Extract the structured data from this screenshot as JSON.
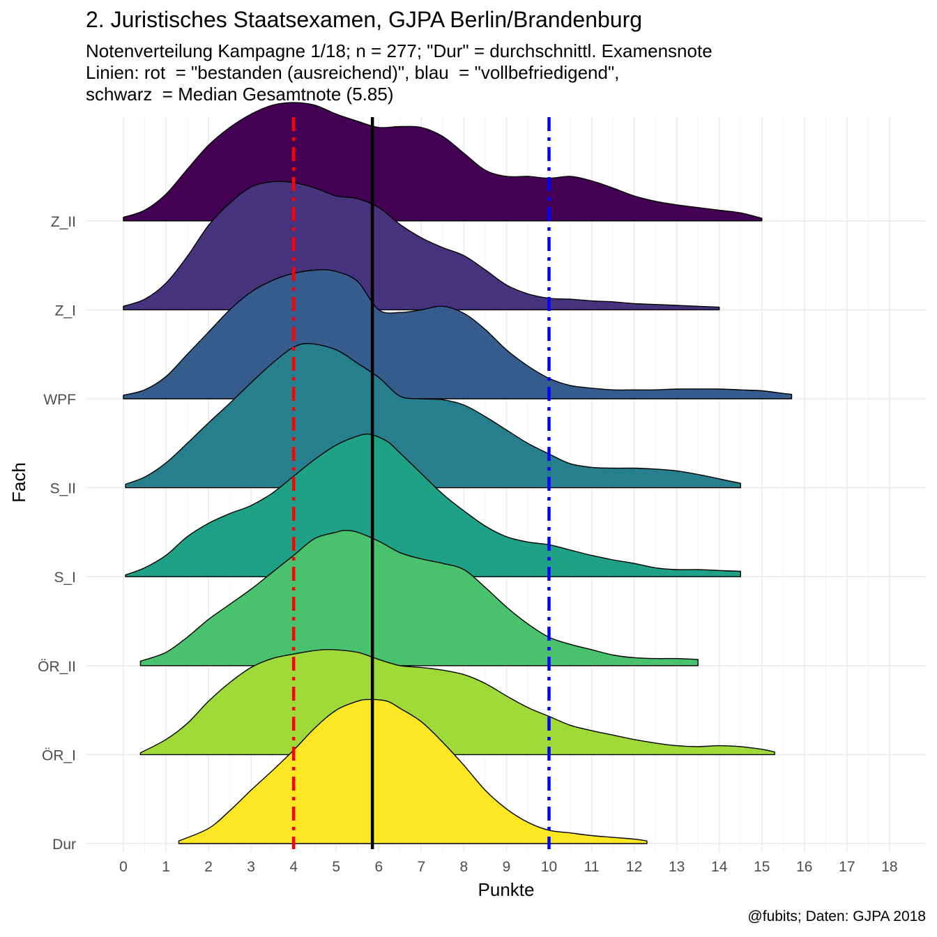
{
  "chart_data": {
    "type": "area",
    "subtype": "ridgeline-density",
    "title": "2. Juristisches Staatsexamen, GJPA Berlin/Brandenburg",
    "subtitle_lines": [
      "Notenverteilung Kampagne 1/18; n = 277; \"Dur\" = durchschnittl. Examensnote",
      "Linien: rot  = \"bestanden (ausreichend)\", blau  = \"vollbefriedigend\",",
      "schwarz  = Median Gesamtnote (5.85)"
    ],
    "caption": "@fubits; Daten: GJPA 2018",
    "xlabel": "Punkte",
    "ylabel": "Fach",
    "xlim": [
      -0.5,
      18.5
    ],
    "x_ticks": [
      "0",
      "1",
      "2",
      "3",
      "4",
      "5",
      "6",
      "7",
      "8",
      "9",
      "10",
      "11",
      "12",
      "13",
      "14",
      "15",
      "16",
      "17",
      "18"
    ],
    "categories": [
      "Dur",
      "ÖR_I",
      "ÖR_II",
      "S_I",
      "S_II",
      "WPF",
      "Z_I",
      "Z_II"
    ],
    "reference_lines": [
      {
        "x": 4,
        "color": "#ff0000",
        "style": "dashdot",
        "meaning": "bestanden (ausreichend)"
      },
      {
        "x": 10,
        "color": "#0000ff",
        "style": "dashdot",
        "meaning": "vollbefriedigend"
      },
      {
        "x": 5.85,
        "color": "#000000",
        "style": "solid",
        "meaning": "Median Gesamtnote"
      }
    ],
    "density_height_unit": "row spacing (1.0 = distance between adjacent categories)",
    "series": [
      {
        "name": "Dur",
        "color": "#fde725",
        "points": [
          [
            1.3,
            0.03
          ],
          [
            2,
            0.17
          ],
          [
            2.5,
            0.37
          ],
          [
            3,
            0.6
          ],
          [
            3.5,
            0.82
          ],
          [
            4,
            1.05
          ],
          [
            4.5,
            1.3
          ],
          [
            5,
            1.5
          ],
          [
            5.5,
            1.6
          ],
          [
            5.8,
            1.62
          ],
          [
            6.2,
            1.6
          ],
          [
            6.5,
            1.52
          ],
          [
            7,
            1.37
          ],
          [
            7.5,
            1.14
          ],
          [
            8,
            0.88
          ],
          [
            8.5,
            0.6
          ],
          [
            9,
            0.39
          ],
          [
            9.5,
            0.24
          ],
          [
            10,
            0.15
          ],
          [
            10.5,
            0.12
          ],
          [
            11,
            0.09
          ],
          [
            11.5,
            0.07
          ],
          [
            12,
            0.05
          ],
          [
            12.3,
            0.03
          ]
        ]
      },
      {
        "name": "ÖR_I",
        "color": "#a0da39",
        "points": [
          [
            0.4,
            0.02
          ],
          [
            1,
            0.17
          ],
          [
            1.5,
            0.35
          ],
          [
            2,
            0.6
          ],
          [
            2.5,
            0.81
          ],
          [
            3,
            0.98
          ],
          [
            3.5,
            1.08
          ],
          [
            4,
            1.13
          ],
          [
            4.5,
            1.17
          ],
          [
            4.9,
            1.18
          ],
          [
            5.5,
            1.15
          ],
          [
            6,
            1.07
          ],
          [
            6.5,
            1.0
          ],
          [
            7,
            0.98
          ],
          [
            7.5,
            0.95
          ],
          [
            8,
            0.9
          ],
          [
            8.5,
            0.8
          ],
          [
            9,
            0.66
          ],
          [
            9.5,
            0.53
          ],
          [
            10,
            0.43
          ],
          [
            10.5,
            0.33
          ],
          [
            11,
            0.27
          ],
          [
            11.5,
            0.22
          ],
          [
            12,
            0.17
          ],
          [
            12.5,
            0.13
          ],
          [
            13,
            0.1
          ],
          [
            13.5,
            0.09
          ],
          [
            14,
            0.1
          ],
          [
            14.5,
            0.09
          ],
          [
            15,
            0.06
          ],
          [
            15.3,
            0.03
          ]
        ]
      },
      {
        "name": "ÖR_II",
        "color": "#4ac16d",
        "points": [
          [
            0.4,
            0.05
          ],
          [
            1,
            0.15
          ],
          [
            1.5,
            0.32
          ],
          [
            2,
            0.52
          ],
          [
            2.5,
            0.69
          ],
          [
            3,
            0.86
          ],
          [
            3.5,
            1.05
          ],
          [
            4,
            1.24
          ],
          [
            4.5,
            1.43
          ],
          [
            5,
            1.5
          ],
          [
            5.2,
            1.52
          ],
          [
            5.5,
            1.5
          ],
          [
            6,
            1.4
          ],
          [
            6.5,
            1.27
          ],
          [
            7,
            1.2
          ],
          [
            7.5,
            1.15
          ],
          [
            8,
            1.08
          ],
          [
            8.5,
            0.88
          ],
          [
            9,
            0.66
          ],
          [
            9.5,
            0.47
          ],
          [
            10,
            0.32
          ],
          [
            10.5,
            0.24
          ],
          [
            11,
            0.18
          ],
          [
            11.5,
            0.12
          ],
          [
            12,
            0.09
          ],
          [
            12.5,
            0.08
          ],
          [
            13,
            0.08
          ],
          [
            13.5,
            0.07
          ]
        ]
      },
      {
        "name": "S_I",
        "color": "#1fa187",
        "points": [
          [
            0.05,
            0.02
          ],
          [
            0.5,
            0.1
          ],
          [
            1,
            0.24
          ],
          [
            1.5,
            0.45
          ],
          [
            2,
            0.6
          ],
          [
            2.5,
            0.71
          ],
          [
            3,
            0.8
          ],
          [
            3.5,
            0.94
          ],
          [
            4,
            1.13
          ],
          [
            4.5,
            1.32
          ],
          [
            5,
            1.48
          ],
          [
            5.5,
            1.58
          ],
          [
            5.8,
            1.6
          ],
          [
            6.2,
            1.52
          ],
          [
            6.5,
            1.39
          ],
          [
            7,
            1.16
          ],
          [
            7.5,
            0.93
          ],
          [
            8,
            0.74
          ],
          [
            8.5,
            0.57
          ],
          [
            9,
            0.45
          ],
          [
            9.5,
            0.39
          ],
          [
            10,
            0.36
          ],
          [
            10.5,
            0.3
          ],
          [
            11,
            0.24
          ],
          [
            11.5,
            0.19
          ],
          [
            12,
            0.15
          ],
          [
            12.5,
            0.1
          ],
          [
            13,
            0.08
          ],
          [
            13.5,
            0.08
          ],
          [
            14,
            0.07
          ],
          [
            14.5,
            0.06
          ]
        ]
      },
      {
        "name": "S_II",
        "color": "#277f8e",
        "points": [
          [
            0.05,
            0.04
          ],
          [
            0.5,
            0.12
          ],
          [
            1,
            0.28
          ],
          [
            1.5,
            0.5
          ],
          [
            2,
            0.73
          ],
          [
            2.5,
            0.95
          ],
          [
            3,
            1.18
          ],
          [
            3.5,
            1.4
          ],
          [
            4,
            1.58
          ],
          [
            4.4,
            1.62
          ],
          [
            5,
            1.55
          ],
          [
            5.5,
            1.4
          ],
          [
            6,
            1.24
          ],
          [
            6.5,
            1.03
          ],
          [
            7,
            1.0
          ],
          [
            7.5,
            0.99
          ],
          [
            8,
            0.93
          ],
          [
            8.5,
            0.8
          ],
          [
            9,
            0.65
          ],
          [
            9.5,
            0.5
          ],
          [
            10,
            0.38
          ],
          [
            10.5,
            0.27
          ],
          [
            11,
            0.23
          ],
          [
            11.5,
            0.22
          ],
          [
            12,
            0.22
          ],
          [
            12.5,
            0.21
          ],
          [
            13,
            0.19
          ],
          [
            13.5,
            0.15
          ],
          [
            14,
            0.1
          ],
          [
            14.5,
            0.05
          ]
        ]
      },
      {
        "name": "WPF",
        "color": "#365c8d",
        "points": [
          [
            0,
            0.04
          ],
          [
            0.5,
            0.1
          ],
          [
            1,
            0.25
          ],
          [
            1.5,
            0.5
          ],
          [
            2,
            0.75
          ],
          [
            2.5,
            1.0
          ],
          [
            3,
            1.2
          ],
          [
            3.5,
            1.33
          ],
          [
            4,
            1.41
          ],
          [
            4.6,
            1.45
          ],
          [
            5,
            1.43
          ],
          [
            5.5,
            1.32
          ],
          [
            6,
            1.0
          ],
          [
            6.5,
            0.97
          ],
          [
            7,
            1.0
          ],
          [
            7.5,
            1.04
          ],
          [
            8,
            0.96
          ],
          [
            8.5,
            0.78
          ],
          [
            9,
            0.55
          ],
          [
            9.5,
            0.37
          ],
          [
            10,
            0.23
          ],
          [
            10.5,
            0.15
          ],
          [
            11,
            0.12
          ],
          [
            11.5,
            0.1
          ],
          [
            12,
            0.1
          ],
          [
            12.5,
            0.1
          ],
          [
            13,
            0.11
          ],
          [
            13.5,
            0.11
          ],
          [
            14,
            0.11
          ],
          [
            14.5,
            0.1
          ],
          [
            15,
            0.09
          ],
          [
            15.5,
            0.06
          ],
          [
            15.7,
            0.05
          ]
        ]
      },
      {
        "name": "Z_I",
        "color": "#46337e",
        "points": [
          [
            0,
            0.04
          ],
          [
            0.5,
            0.12
          ],
          [
            1,
            0.3
          ],
          [
            1.5,
            0.6
          ],
          [
            2,
            0.95
          ],
          [
            2.5,
            1.2
          ],
          [
            3,
            1.38
          ],
          [
            3.5,
            1.44
          ],
          [
            4,
            1.43
          ],
          [
            4.5,
            1.37
          ],
          [
            5,
            1.28
          ],
          [
            5.5,
            1.25
          ],
          [
            6,
            1.15
          ],
          [
            6.5,
            0.96
          ],
          [
            7,
            0.81
          ],
          [
            7.5,
            0.7
          ],
          [
            8,
            0.61
          ],
          [
            8.5,
            0.45
          ],
          [
            9,
            0.28
          ],
          [
            9.5,
            0.18
          ],
          [
            10,
            0.13
          ],
          [
            10.5,
            0.12
          ],
          [
            11,
            0.1
          ],
          [
            11.5,
            0.09
          ],
          [
            12,
            0.07
          ],
          [
            12.5,
            0.06
          ],
          [
            13,
            0.05
          ],
          [
            13.5,
            0.04
          ],
          [
            14,
            0.03
          ]
        ]
      },
      {
        "name": "Z_II",
        "color": "#440154",
        "points": [
          [
            0,
            0.04
          ],
          [
            0.5,
            0.12
          ],
          [
            1,
            0.3
          ],
          [
            1.5,
            0.58
          ],
          [
            2,
            0.85
          ],
          [
            2.5,
            1.05
          ],
          [
            3,
            1.2
          ],
          [
            3.5,
            1.3
          ],
          [
            4,
            1.33
          ],
          [
            4.5,
            1.3
          ],
          [
            5,
            1.2
          ],
          [
            5.5,
            1.12
          ],
          [
            6,
            1.05
          ],
          [
            6.5,
            1.06
          ],
          [
            7,
            1.05
          ],
          [
            7.5,
            0.95
          ],
          [
            8,
            0.76
          ],
          [
            8.5,
            0.57
          ],
          [
            9,
            0.5
          ],
          [
            9.5,
            0.5
          ],
          [
            10,
            0.48
          ],
          [
            10.5,
            0.5
          ],
          [
            11,
            0.45
          ],
          [
            11.5,
            0.37
          ],
          [
            12,
            0.28
          ],
          [
            12.5,
            0.22
          ],
          [
            13,
            0.18
          ],
          [
            13.5,
            0.15
          ],
          [
            14,
            0.12
          ],
          [
            14.5,
            0.09
          ],
          [
            15,
            0.03
          ]
        ]
      }
    ]
  }
}
